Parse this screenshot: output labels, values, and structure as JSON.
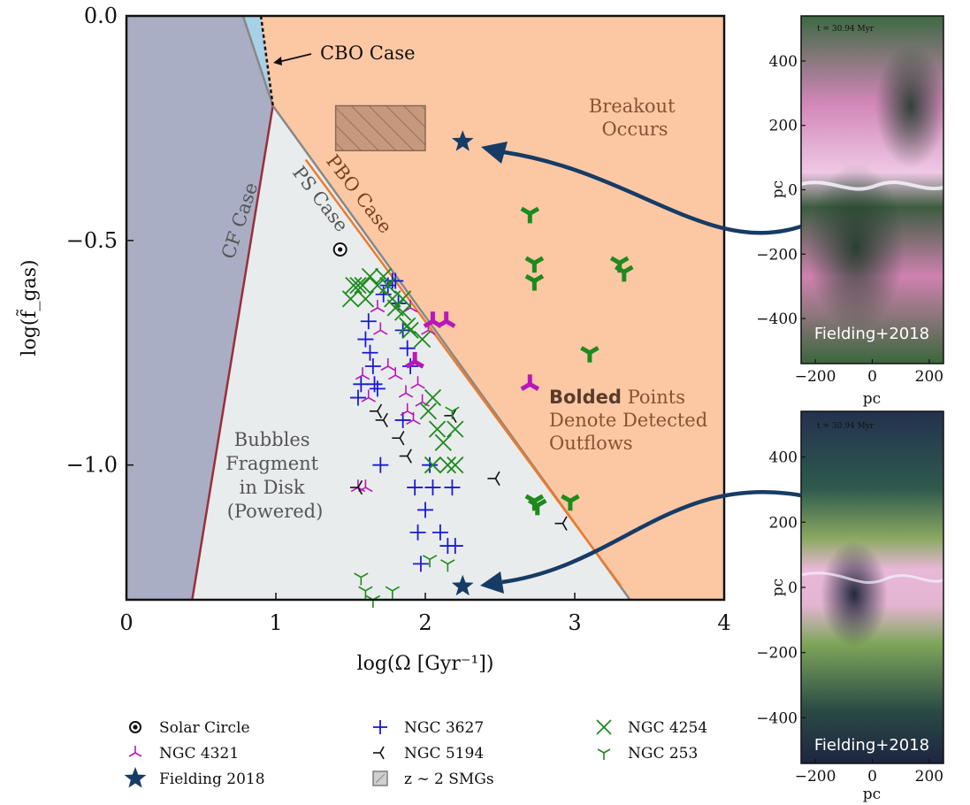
{
  "chart_data": {
    "type": "scatter",
    "xlabel": "log(Ω [Gyr⁻¹])",
    "ylabel": "log(f̃_gas)",
    "xlim": [
      0,
      4
    ],
    "ylim": [
      -1.3,
      0.0
    ],
    "xticks": [
      "0",
      "1",
      "2",
      "3",
      "4"
    ],
    "yticks": [
      "0.0",
      "−0.5",
      "−1.0"
    ],
    "regions": {
      "cf": "CF Case",
      "ps": "PS Case",
      "pbo": "PBO Case",
      "cbo": "CBO Case",
      "breakout": [
        "Breakout",
        "Occurs"
      ],
      "bubbles": [
        "Bubbles",
        "Fragment",
        "in Disk",
        "(Powered)"
      ]
    },
    "colors": {
      "cf_fill": "#a9aec4",
      "ps_fill": "#e9ecec",
      "breakout_fill": "#fcc8a4",
      "cbo_fill": "#a8d0e6",
      "cf_line": "#9b2d3c",
      "ps_line": "#888888",
      "pbo_line": "#f07a2a",
      "ngc4321": "#b818b8",
      "ngc3627": "#1a1ad6",
      "ngc5194": "#111111",
      "ngc4254": "#1e8a1e",
      "ngc253": "#1e8a1e",
      "fielding": "#163b66",
      "smg_box": "#b48a70"
    },
    "annotation": {
      "bold": "Bolded",
      "rest1": " Points",
      "line2": "Denote Detected",
      "line3": "Outflows"
    },
    "smg_box": {
      "x": [
        1.4,
        2.0
      ],
      "y": [
        -0.3,
        -0.2
      ]
    },
    "series": [
      {
        "name": "Solar Circle",
        "marker": "circled-dot",
        "points": [
          [
            1.43,
            -0.52
          ]
        ]
      },
      {
        "name": "NGC 3627",
        "marker": "plus",
        "points": [
          [
            1.55,
            -0.85
          ],
          [
            1.57,
            -0.82
          ],
          [
            1.6,
            -0.72
          ],
          [
            1.62,
            -0.68
          ],
          [
            1.63,
            -0.75
          ],
          [
            1.65,
            -0.78
          ],
          [
            1.66,
            -0.82
          ],
          [
            1.68,
            -0.83
          ],
          [
            1.72,
            -0.62
          ],
          [
            1.75,
            -0.6
          ],
          [
            1.78,
            -0.59
          ],
          [
            1.8,
            -0.59
          ],
          [
            1.82,
            -0.64
          ],
          [
            1.85,
            -0.7
          ],
          [
            1.88,
            -0.74
          ],
          [
            1.9,
            -0.78
          ],
          [
            1.93,
            -1.05
          ],
          [
            1.95,
            -1.15
          ],
          [
            1.97,
            -1.22
          ],
          [
            2.0,
            -1.1
          ],
          [
            2.03,
            -1.0
          ],
          [
            2.05,
            -1.05
          ],
          [
            2.1,
            -1.15
          ],
          [
            2.15,
            -1.18
          ],
          [
            2.18,
            -1.05
          ],
          [
            1.7,
            -1.0
          ],
          [
            1.85,
            -0.9
          ],
          [
            2.2,
            -1.18
          ]
        ]
      },
      {
        "name": "NGC 4321",
        "marker": "tri-down",
        "points": [
          [
            1.55,
            -1.05
          ],
          [
            1.6,
            -1.05
          ],
          [
            1.58,
            -0.8
          ],
          [
            1.62,
            -0.85
          ],
          [
            1.68,
            -0.65
          ],
          [
            1.7,
            -0.7
          ],
          [
            1.75,
            -0.78
          ],
          [
            1.8,
            -0.8
          ],
          [
            1.87,
            -0.84
          ],
          [
            1.88,
            -0.88
          ],
          [
            1.92,
            -0.9
          ],
          [
            1.95,
            -0.82
          ],
          [
            1.98,
            -0.86
          ],
          [
            2.02,
            -0.7
          ],
          [
            1.9,
            -0.65
          ]
        ]
      },
      {
        "name": "NGC 4321 detected",
        "marker": "tri-down-bold",
        "points": [
          [
            1.93,
            -0.77
          ],
          [
            2.05,
            -0.68
          ],
          [
            2.14,
            -0.68
          ],
          [
            2.7,
            -0.82
          ]
        ]
      },
      {
        "name": "NGC 5194",
        "marker": "tri-left",
        "points": [
          [
            1.55,
            -1.05
          ],
          [
            1.68,
            -0.88
          ],
          [
            1.72,
            -0.9
          ],
          [
            1.83,
            -0.94
          ],
          [
            1.88,
            -0.98
          ],
          [
            2.18,
            -0.89
          ],
          [
            2.47,
            -1.03
          ],
          [
            2.92,
            -1.13
          ]
        ]
      },
      {
        "name": "NGC 4254",
        "marker": "x",
        "points": [
          [
            1.5,
            -0.63
          ],
          [
            1.52,
            -0.6
          ],
          [
            1.55,
            -0.6
          ],
          [
            1.58,
            -0.6
          ],
          [
            1.6,
            -0.63
          ],
          [
            1.63,
            -0.58
          ],
          [
            1.68,
            -0.6
          ],
          [
            1.72,
            -0.58
          ],
          [
            1.75,
            -0.6
          ],
          [
            1.78,
            -0.63
          ],
          [
            1.8,
            -0.65
          ],
          [
            1.85,
            -0.66
          ],
          [
            1.88,
            -0.69
          ],
          [
            1.9,
            -0.7
          ],
          [
            1.85,
            -0.63
          ],
          [
            1.98,
            -0.72
          ],
          [
            2.05,
            -0.85
          ],
          [
            2.08,
            -0.92
          ],
          [
            2.12,
            -0.95
          ],
          [
            2.15,
            -1.0
          ],
          [
            2.2,
            -1.0
          ],
          [
            2.05,
            -1.0
          ],
          [
            2.02,
            -0.88
          ],
          [
            2.2,
            -0.92
          ]
        ]
      },
      {
        "name": "NGC 253",
        "marker": "tri-up",
        "points": [
          [
            1.57,
            -1.25
          ],
          [
            1.6,
            -1.28
          ],
          [
            1.65,
            -1.3
          ],
          [
            1.78,
            -1.28
          ],
          [
            2.03,
            -1.21
          ],
          [
            2.15,
            -1.22
          ],
          [
            2.18,
            -0.88
          ]
        ]
      },
      {
        "name": "NGC 253 detected",
        "marker": "tri-up-bold",
        "points": [
          [
            2.7,
            -0.44
          ],
          [
            2.73,
            -0.55
          ],
          [
            2.73,
            -0.59
          ],
          [
            3.1,
            -0.75
          ],
          [
            3.3,
            -0.55
          ],
          [
            3.33,
            -0.57
          ],
          [
            2.73,
            -1.08
          ],
          [
            2.75,
            -1.09
          ],
          [
            2.97,
            -1.08
          ]
        ]
      },
      {
        "name": "Fielding 2018",
        "marker": "star",
        "points": [
          [
            2.25,
            -0.28
          ],
          [
            2.25,
            -1.27
          ]
        ]
      }
    ],
    "legend": [
      {
        "marker": "circled-dot",
        "label": "Solar Circle"
      },
      {
        "marker": "plus",
        "label": "NGC 3627"
      },
      {
        "marker": "x",
        "label": "NGC 4254"
      },
      {
        "marker": "tri-down",
        "label": "NGC 4321"
      },
      {
        "marker": "tri-left",
        "label": "NGC 5194"
      },
      {
        "marker": "tri-up",
        "label": "NGC 253"
      },
      {
        "marker": "star",
        "label": "Fielding 2018"
      },
      {
        "marker": "box",
        "label": "z ∼ 2 SMGs"
      }
    ]
  },
  "sim_panels": {
    "top": {
      "label": "Fielding+2018",
      "timestamp": "t = 30.94 Myr",
      "xlabel": "pc",
      "ylabel": "pc",
      "xticks": [
        "−200",
        "0",
        "200"
      ],
      "yticks": [
        "400",
        "200",
        "0",
        "−200",
        "−400"
      ]
    },
    "bottom": {
      "label": "Fielding+2018",
      "timestamp": "t = 30.94 Myr",
      "xlabel": "pc",
      "ylabel": "pc",
      "xticks": [
        "−200",
        "0",
        "200"
      ],
      "yticks": [
        "400",
        "200",
        "0",
        "−200",
        "−400"
      ]
    }
  }
}
